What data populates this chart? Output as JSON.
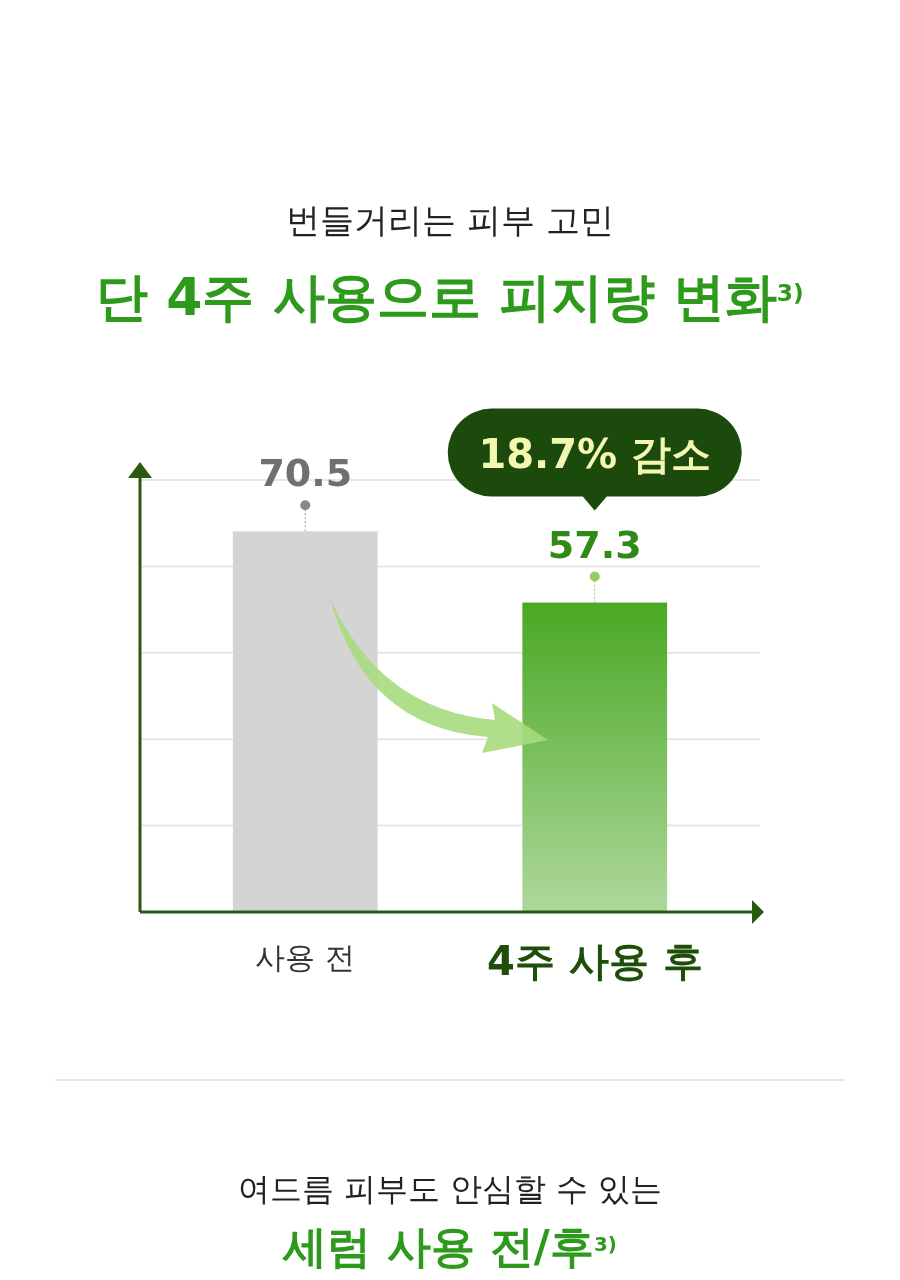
{
  "chart_data": {
    "type": "bar",
    "subtitle": "번들거리는 피부 고민",
    "title": "단 4주 사용으로 피지량 변화$^{3)}$",
    "categories": [
      "사용 전",
      "4주 사용 후"
    ],
    "values": [
      70.5,
      57.3
    ],
    "colors": [
      "#d4d4d4",
      "#4aa823"
    ],
    "ylim": [
      0,
      80
    ],
    "yticks": [
      {
        "value": 16,
        "label": null
      },
      {
        "value": 32,
        "label": null
      },
      {
        "value": 48,
        "label": null
      },
      {
        "value": 64,
        "label": null
      },
      {
        "value": 80,
        "label": null
      }
    ],
    "grid": "y",
    "tick_labels": "x",
    "data_labels": true,
    "annotations": [
      "18.7% 감소",
      "여드름 피부도 안심할 수 있는",
      "세럼 사용 전/후$^{3)}$"
    ]
  }
}
